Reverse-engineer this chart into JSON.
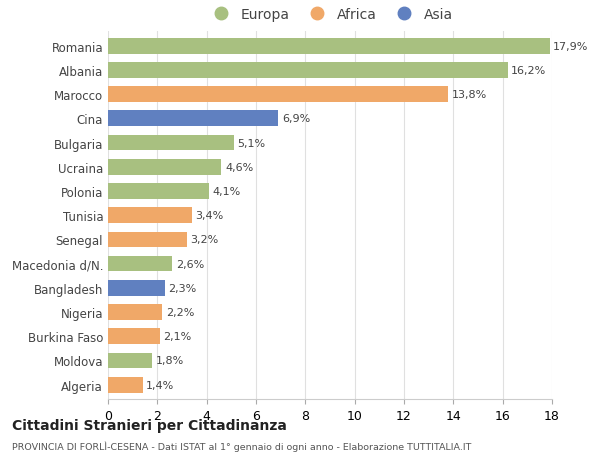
{
  "countries": [
    "Romania",
    "Albania",
    "Marocco",
    "Cina",
    "Bulgaria",
    "Ucraina",
    "Polonia",
    "Tunisia",
    "Senegal",
    "Macedonia d/N.",
    "Bangladesh",
    "Nigeria",
    "Burkina Faso",
    "Moldova",
    "Algeria"
  ],
  "values": [
    17.9,
    16.2,
    13.8,
    6.9,
    5.1,
    4.6,
    4.1,
    3.4,
    3.2,
    2.6,
    2.3,
    2.2,
    2.1,
    1.8,
    1.4
  ],
  "labels": [
    "17,9%",
    "16,2%",
    "13,8%",
    "6,9%",
    "5,1%",
    "4,6%",
    "4,1%",
    "3,4%",
    "3,2%",
    "2,6%",
    "2,3%",
    "2,2%",
    "2,1%",
    "1,8%",
    "1,4%"
  ],
  "continents": [
    "Europa",
    "Europa",
    "Africa",
    "Asia",
    "Europa",
    "Europa",
    "Europa",
    "Africa",
    "Africa",
    "Europa",
    "Asia",
    "Africa",
    "Africa",
    "Europa",
    "Africa"
  ],
  "colors": {
    "Europa": "#a8c080",
    "Africa": "#f0a868",
    "Asia": "#6080c0"
  },
  "title": "Cittadini Stranieri per Cittadinanza",
  "subtitle": "PROVINCIA DI FORLÌ-CESENA - Dati ISTAT al 1° gennaio di ogni anno - Elaborazione TUTTITALIA.IT",
  "xlim": [
    0,
    18
  ],
  "xticks": [
    0,
    2,
    4,
    6,
    8,
    10,
    12,
    14,
    16,
    18
  ],
  "background_color": "#ffffff",
  "grid_color": "#e0e0e0",
  "bar_height": 0.65
}
